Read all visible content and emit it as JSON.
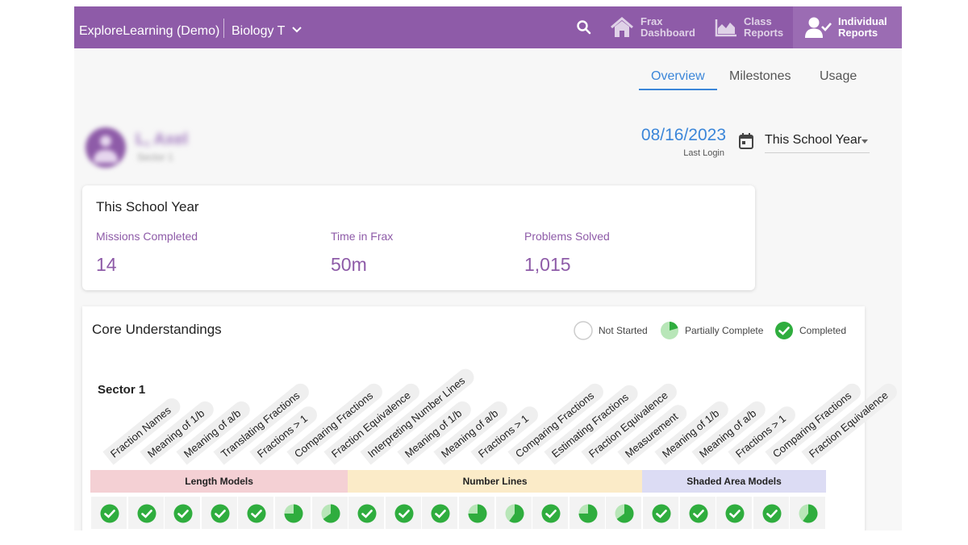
{
  "header": {
    "brand": "ExploreLearning (Demo)",
    "class_name": "Biology T",
    "nav": [
      {
        "label": "Frax Dashboard",
        "icon": "house-icon"
      },
      {
        "label": "Class Reports",
        "icon": "area-chart-icon"
      },
      {
        "label": "Individual Reports",
        "icon": "user-check-icon"
      }
    ]
  },
  "tabs": [
    "Overview",
    "Milestones",
    "Usage"
  ],
  "student": {
    "name": "L, Axel",
    "sector": "Sector 1"
  },
  "last_login": {
    "date": "08/16/2023",
    "label": "Last Login"
  },
  "range_select": {
    "value": "This School Year"
  },
  "summary": {
    "title": "This School Year",
    "stats": [
      {
        "label": "Missions Completed",
        "value": "14"
      },
      {
        "label": "Time in Frax",
        "value": "50m"
      },
      {
        "label": "Problems Solved",
        "value": "1,015"
      }
    ]
  },
  "core": {
    "title": "Core Understandings",
    "legend": [
      {
        "label": "Not Started",
        "status": "not-started"
      },
      {
        "label": "Partially Complete",
        "status": "partial"
      },
      {
        "label": "Completed",
        "status": "completed"
      }
    ],
    "sector_title": "Sector 1",
    "groups": [
      {
        "label": "Length Models",
        "color": "#f4d0d4",
        "count": 7
      },
      {
        "label": "Number Lines",
        "color": "#fbebc8",
        "count": 8
      },
      {
        "label": "Shaded Area Models",
        "color": "#dcdcf4",
        "count": 5
      }
    ],
    "skills": [
      {
        "label": "Fraction Names",
        "status": "completed"
      },
      {
        "label": "Meaning of 1/b",
        "status": "completed"
      },
      {
        "label": "Meaning of a/b",
        "status": "completed"
      },
      {
        "label": "Translating Fractions",
        "status": "completed"
      },
      {
        "label": "Fractions > 1",
        "status": "completed"
      },
      {
        "label": "Comparing Fractions",
        "status": "partial",
        "progress": 0.75
      },
      {
        "label": "Fraction Equivalence",
        "status": "partial",
        "progress": 0.65
      },
      {
        "label": "Interpreting Number Lines",
        "status": "completed"
      },
      {
        "label": "Meaning of 1/b",
        "status": "completed"
      },
      {
        "label": "Meaning of a/b",
        "status": "completed"
      },
      {
        "label": "Fractions > 1",
        "status": "partial",
        "progress": 0.75
      },
      {
        "label": "Comparing Fractions",
        "status": "partial",
        "progress": 0.6
      },
      {
        "label": "Estimating Fractions",
        "status": "completed"
      },
      {
        "label": "Fraction Equivalence",
        "status": "partial",
        "progress": 0.75
      },
      {
        "label": "Measurement",
        "status": "partial",
        "progress": 0.65
      },
      {
        "label": "Meaning of 1/b",
        "status": "completed"
      },
      {
        "label": "Meaning of a/b",
        "status": "completed"
      },
      {
        "label": "Fractions > 1",
        "status": "completed"
      },
      {
        "label": "Comparing Fractions",
        "status": "completed"
      },
      {
        "label": "Fraction Equivalence",
        "status": "partial",
        "progress": 0.6
      }
    ],
    "colors": {
      "completed": "#2fad3e",
      "partial_fill": "#2fad3e",
      "partial_bg": "#b8e6b8",
      "not_started_border": "#cccccc"
    }
  },
  "colors": {
    "brand_purple": "#8e5ba8",
    "accent_blue": "#3b86d9"
  }
}
